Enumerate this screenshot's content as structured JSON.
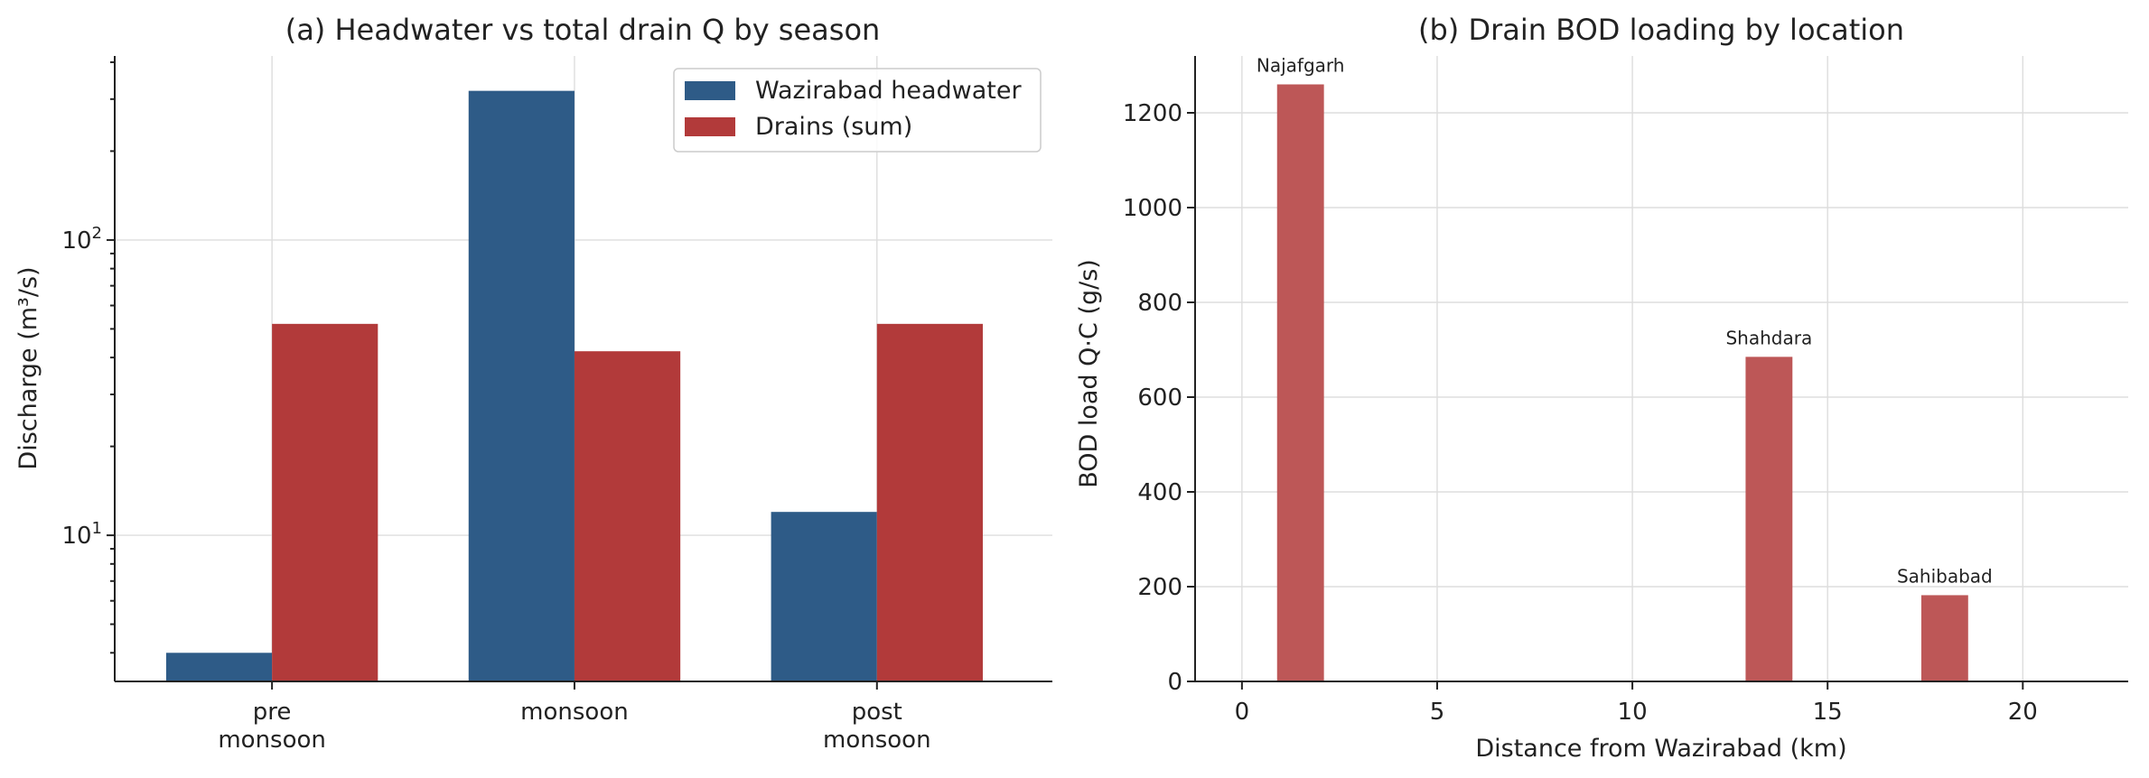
{
  "chart_data": [
    {
      "type": "bar",
      "title": "(a) Headwater vs total drain Q by season",
      "xlabel": "",
      "ylabel": "Discharge (m³/s)",
      "yscale": "log",
      "ylim": [
        3.2,
        420
      ],
      "yticks": [
        10,
        100
      ],
      "ytick_labels": [
        {
          "base": "10",
          "exp": "1"
        },
        {
          "base": "10",
          "exp": "2"
        }
      ],
      "grid": true,
      "legend": "top-right",
      "categories": [
        [
          "pre",
          "monsoon"
        ],
        [
          "monsoon"
        ],
        [
          "post",
          "monsoon"
        ]
      ],
      "series": [
        {
          "name": "Wazirabad headwater",
          "color": "#2e5b87",
          "values": [
            4,
            320,
            12
          ]
        },
        {
          "name": "Drains (sum)",
          "color": "#b23a3a",
          "values": [
            52,
            42,
            52
          ]
        }
      ]
    },
    {
      "type": "bar",
      "title": "(b) Drain BOD loading by location",
      "xlabel": "Distance from Wazirabad (km)",
      "ylabel": "BOD load Q·C  (g/s)",
      "xlim": [
        -1.2,
        22.7
      ],
      "ylim": [
        0,
        1320
      ],
      "xticks": [
        0,
        5,
        10,
        15,
        20
      ],
      "yticks": [
        0,
        200,
        400,
        600,
        800,
        1000,
        1200
      ],
      "grid": true,
      "color": "#bd5757",
      "bar_width_km": 1.2,
      "bars": [
        {
          "label": "Najafgarh",
          "x": 1.5,
          "value": 1260
        },
        {
          "label": "Shahdara",
          "x": 13.5,
          "value": 685
        },
        {
          "label": "Sahibabad",
          "x": 18,
          "value": 182
        }
      ]
    }
  ]
}
